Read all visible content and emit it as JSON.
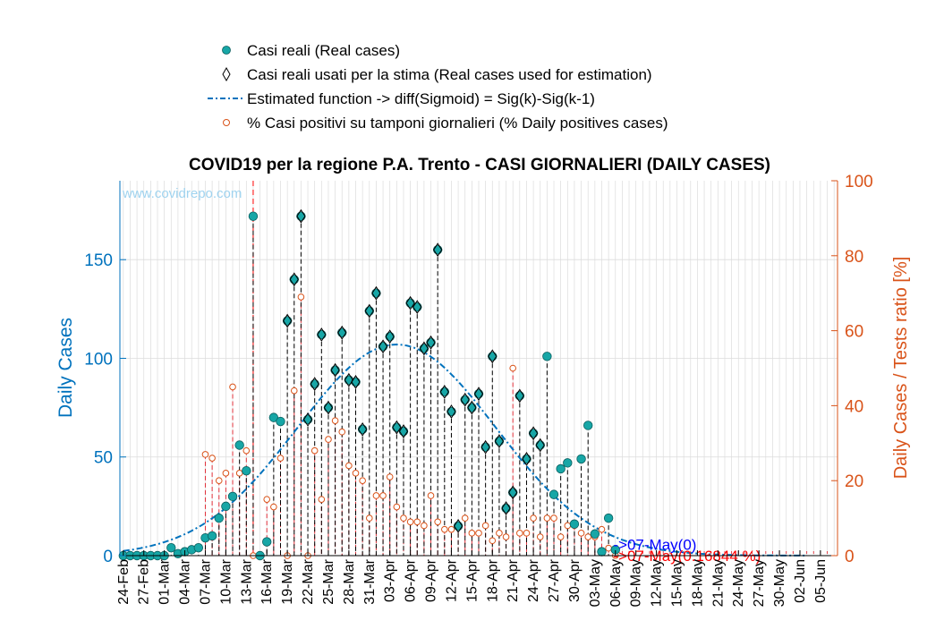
{
  "legend": {
    "items": [
      {
        "label": "Casi reali (Real cases)",
        "marker": "filled-circle"
      },
      {
        "label": "Casi reali usati per la stima (Real cases used for estimation)",
        "marker": "diamond"
      },
      {
        "label": "Estimated function -> diff(Sigmoid) = Sig(k)-Sig(k-1)",
        "marker": "dash-dot-line"
      },
      {
        "label": "% Casi positivi su tamponi giornalieri (% Daily positives cases)",
        "marker": "open-circle"
      }
    ]
  },
  "chart_data": {
    "type": "scatter",
    "title": "COVID19 per la regione P.A. Trento - CASI GIORNALIERI (DAILY CASES)",
    "watermark": "www.covidrepo.com",
    "ylabel_left": "Daily Cases",
    "ylabel_right": "Daily Cases / Tests ratio [%]",
    "ylim_left": [
      0,
      190
    ],
    "ylim_right": [
      0,
      100
    ],
    "yticks_left": [
      0,
      50,
      100,
      150
    ],
    "yticks_right": [
      0,
      20,
      40,
      60,
      80,
      100
    ],
    "xticks": [
      "24-Feb",
      "27-Feb",
      "01-Mar",
      "04-Mar",
      "07-Mar",
      "10-Mar",
      "13-Mar",
      "16-Mar",
      "19-Mar",
      "22-Mar",
      "25-Mar",
      "28-Mar",
      "31-Mar",
      "03-Apr",
      "06-Apr",
      "09-Apr",
      "12-Apr",
      "15-Apr",
      "18-Apr",
      "21-Apr",
      "24-Apr",
      "27-Apr",
      "30-Apr",
      "03-May",
      "06-May",
      "09-May",
      "12-May",
      "15-May",
      "18-May",
      "21-May",
      "24-May",
      "27-May",
      "30-May",
      "02-Jun",
      "05-Jun"
    ],
    "day_count": 105,
    "grid": true,
    "marker_color": "#17A6A6",
    "left_axis_color": "#0072BD",
    "right_axis_color": "#D95319",
    "lockdown_marker_day": 19,
    "annotations": [
      {
        "text": "->07-May(0)",
        "color": "#0000FF",
        "day": 73,
        "y": 2
      },
      {
        "text": "->07-May(0.16844 %)",
        "color": "#FF0000",
        "day": 73,
        "y": 0
      }
    ],
    "series": [
      {
        "name": "Casi reali (Real cases)",
        "x_day": [
          0,
          1,
          2,
          3,
          4,
          5,
          6,
          7,
          8,
          9,
          10,
          11,
          12,
          13,
          14,
          15,
          16,
          17,
          18,
          19,
          20,
          21,
          22,
          23,
          24,
          25,
          26,
          27,
          28,
          29,
          30,
          31,
          32,
          33,
          34,
          35,
          36,
          37,
          38,
          39,
          40,
          41,
          42,
          43,
          44,
          45,
          46,
          47,
          48,
          49,
          50,
          51,
          52,
          53,
          54,
          55,
          56,
          57,
          58,
          59,
          60,
          61,
          62,
          63,
          64,
          65,
          66,
          67,
          68,
          69,
          70,
          71,
          72
        ],
        "values": [
          0,
          0,
          0,
          0,
          0,
          0,
          0,
          4,
          1,
          2,
          3,
          4,
          9,
          10,
          19,
          25,
          30,
          56,
          43,
          172,
          0,
          7,
          70,
          68,
          119,
          140,
          172,
          69,
          87,
          112,
          75,
          94,
          113,
          89,
          88,
          64,
          124,
          133,
          106,
          111,
          65,
          63,
          128,
          126,
          105,
          108,
          155,
          83,
          73,
          15,
          79,
          75,
          82,
          55,
          101,
          58,
          24,
          32,
          81,
          49,
          62,
          56,
          101,
          31,
          44,
          47,
          16,
          49,
          66,
          11,
          2,
          19,
          3
        ]
      },
      {
        "name": "Casi reali usati per la stima (Real cases used for estimation)",
        "x_day": [
          24,
          25,
          26,
          27,
          28,
          29,
          30,
          31,
          32,
          33,
          34,
          35,
          36,
          37,
          38,
          39,
          40,
          41,
          42,
          43,
          44,
          45,
          46,
          47,
          48,
          49,
          50,
          51,
          52,
          53,
          54,
          55,
          56,
          57,
          58,
          59,
          60,
          61
        ],
        "values": [
          119,
          140,
          172,
          69,
          87,
          112,
          75,
          94,
          113,
          89,
          88,
          64,
          124,
          133,
          106,
          111,
          65,
          63,
          128,
          126,
          105,
          108,
          155,
          83,
          73,
          15,
          79,
          75,
          82,
          55,
          101,
          58,
          24,
          32,
          81,
          49,
          62,
          56
        ]
      },
      {
        "name": "Estimated function -> diff(Sigmoid) = Sig(k)-Sig(k-1)",
        "model": {
          "peak_day": 40,
          "peak_value": 107,
          "sigma_days": 14.5,
          "start_day": 0,
          "end_day": 100
        }
      },
      {
        "name": "% Casi positivi su tamponi giornalieri (% Daily positives cases)",
        "axis": "right",
        "x_day": [
          12,
          13,
          14,
          15,
          16,
          17,
          18,
          19,
          20,
          21,
          22,
          23,
          24,
          25,
          26,
          27,
          28,
          29,
          30,
          31,
          32,
          33,
          34,
          35,
          36,
          37,
          38,
          39,
          40,
          41,
          42,
          43,
          44,
          45,
          46,
          47,
          48,
          49,
          50,
          51,
          52,
          53,
          54,
          55,
          56,
          57,
          58,
          59,
          60,
          61,
          62,
          63,
          64,
          65,
          66,
          67,
          68,
          69,
          70,
          71,
          72
        ],
        "values": [
          27,
          26,
          20,
          22,
          45,
          22,
          28,
          0,
          0,
          15,
          13,
          26,
          0,
          44,
          69,
          0,
          28,
          15,
          31,
          36,
          33,
          24,
          22,
          20,
          10,
          16,
          16,
          21,
          13,
          10,
          9,
          9,
          8,
          16,
          9,
          7,
          7,
          8,
          10,
          6,
          6,
          8,
          4,
          6,
          5,
          50,
          6,
          6,
          10,
          5,
          10,
          10,
          5,
          8,
          8,
          6,
          5,
          5,
          7,
          2,
          0
        ]
      }
    ]
  }
}
